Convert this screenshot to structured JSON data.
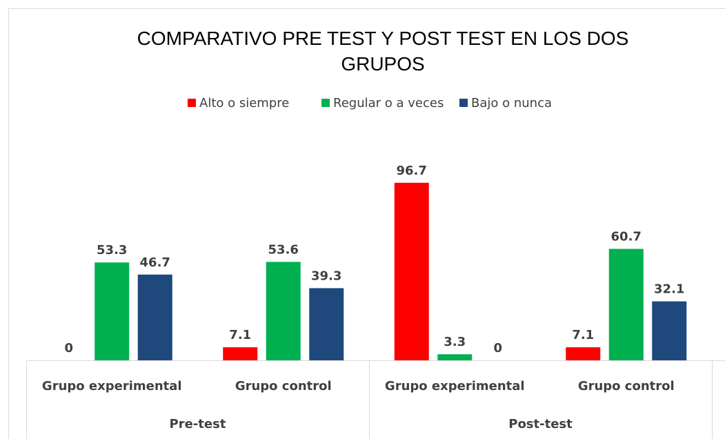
{
  "chart_data": {
    "type": "bar",
    "title": "COMPARATIVO PRE TEST Y POST TEST EN LOS DOS GRUPOS",
    "categories": [
      "Grupo experimental",
      "Grupo control",
      "Grupo experimental",
      "Grupo control"
    ],
    "category_groups": [
      "Pre-test",
      "Post-test"
    ],
    "series": [
      {
        "name": "Alto o siempre",
        "color": "#ff0000",
        "values": [
          0,
          7.1,
          96.7,
          7.1
        ]
      },
      {
        "name": "Regular o a veces",
        "color": "#00b050",
        "values": [
          53.3,
          53.6,
          3.3,
          60.7
        ]
      },
      {
        "name": "Bajo o nunca",
        "color": "#1f497d",
        "values": [
          46.7,
          39.3,
          0,
          32.1
        ]
      }
    ],
    "ylim": [
      0,
      100
    ],
    "legend": "top"
  }
}
